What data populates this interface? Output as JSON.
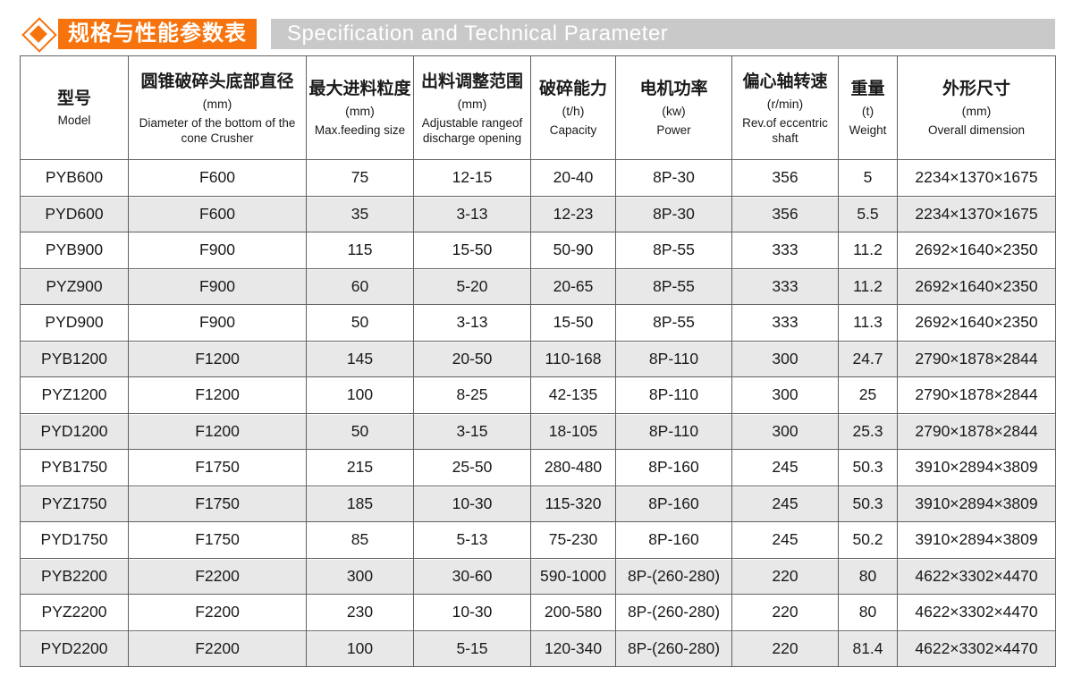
{
  "header": {
    "title_zh": "规格与性能参数表",
    "title_en": "Specification and Technical Parameter",
    "accent_color": "#f7730d",
    "banner_color": "#c9c9c9"
  },
  "table": {
    "columns": [
      {
        "zh": "型号",
        "unit": "",
        "en": "Model"
      },
      {
        "zh": "圆锥破碎头底部直径",
        "unit": "(mm)",
        "en": "Diameter of the bottom of the cone Crusher"
      },
      {
        "zh": "最大进料粒度",
        "unit": "(mm)",
        "en": "Max.feeding size"
      },
      {
        "zh": "出料调整范围",
        "unit": "(mm)",
        "en": "Adjustable rangeof discharge opening"
      },
      {
        "zh": "破碎能力",
        "unit": "(t/h)",
        "en": "Capacity"
      },
      {
        "zh": "电机功率",
        "unit": "(kw)",
        "en": "Power"
      },
      {
        "zh": "偏心轴转速",
        "unit": "(r/min)",
        "en": "Rev.of eccentric shaft"
      },
      {
        "zh": "重量",
        "unit": "(t)",
        "en": "Weight"
      },
      {
        "zh": "外形尺寸",
        "unit": "(mm)",
        "en": "Overall dimension"
      }
    ],
    "rows": [
      [
        "PYB600",
        "F600",
        "75",
        "12-15",
        "20-40",
        "8P-30",
        "356",
        "5",
        "2234×1370×1675"
      ],
      [
        "PYD600",
        "F600",
        "35",
        "3-13",
        "12-23",
        "8P-30",
        "356",
        "5.5",
        "2234×1370×1675"
      ],
      [
        "PYB900",
        "F900",
        "115",
        "15-50",
        "50-90",
        "8P-55",
        "333",
        "11.2",
        "2692×1640×2350"
      ],
      [
        "PYZ900",
        "F900",
        "60",
        "5-20",
        "20-65",
        "8P-55",
        "333",
        "11.2",
        "2692×1640×2350"
      ],
      [
        "PYD900",
        "F900",
        "50",
        "3-13",
        "15-50",
        "8P-55",
        "333",
        "11.3",
        "2692×1640×2350"
      ],
      [
        "PYB1200",
        "F1200",
        "145",
        "20-50",
        "110-168",
        "8P-110",
        "300",
        "24.7",
        "2790×1878×2844"
      ],
      [
        "PYZ1200",
        "F1200",
        "100",
        "8-25",
        "42-135",
        "8P-110",
        "300",
        "25",
        "2790×1878×2844"
      ],
      [
        "PYD1200",
        "F1200",
        "50",
        "3-15",
        "18-105",
        "8P-110",
        "300",
        "25.3",
        "2790×1878×2844"
      ],
      [
        "PYB1750",
        "F1750",
        "215",
        "25-50",
        "280-480",
        "8P-160",
        "245",
        "50.3",
        "3910×2894×3809"
      ],
      [
        "PYZ1750",
        "F1750",
        "185",
        "10-30",
        "115-320",
        "8P-160",
        "245",
        "50.3",
        "3910×2894×3809"
      ],
      [
        "PYD1750",
        "F1750",
        "85",
        "5-13",
        "75-230",
        "8P-160",
        "245",
        "50.2",
        "3910×2894×3809"
      ],
      [
        "PYB2200",
        "F2200",
        "300",
        "30-60",
        "590-1000",
        "8P-(260-280)",
        "220",
        "80",
        "4622×3302×4470"
      ],
      [
        "PYZ2200",
        "F2200",
        "230",
        "10-30",
        "200-580",
        "8P-(260-280)",
        "220",
        "80",
        "4622×3302×4470"
      ],
      [
        "PYD2200",
        "F2200",
        "100",
        "5-15",
        "120-340",
        "8P-(260-280)",
        "220",
        "81.4",
        "4622×3302×4470"
      ]
    ],
    "colors": {
      "row_alt": "#e8e8e8",
      "border": "#616161",
      "text": "#1a1a1a"
    }
  }
}
